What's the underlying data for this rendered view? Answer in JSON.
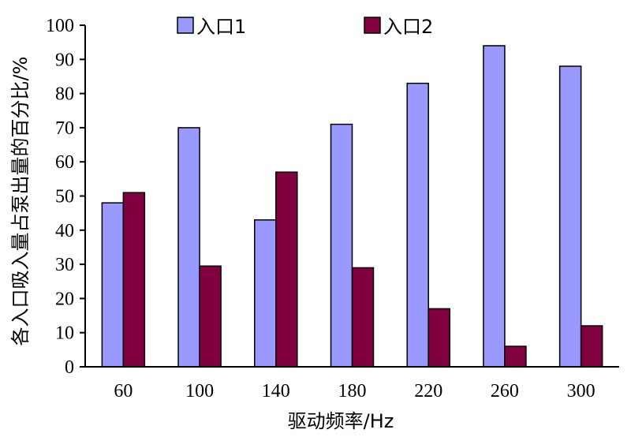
{
  "chart_data": {
    "type": "bar",
    "categories": [
      "60",
      "100",
      "140",
      "180",
      "220",
      "260",
      "300"
    ],
    "series": [
      {
        "name": "入口1",
        "color": "#9999ff",
        "values": [
          48,
          70,
          43,
          71,
          83,
          94,
          88
        ]
      },
      {
        "name": "入口2",
        "color": "#800040",
        "values": [
          51,
          29.5,
          57,
          29,
          17,
          6,
          12
        ]
      }
    ],
    "title": "",
    "xlabel": "驱动频率/Hz",
    "ylabel": "各入口吸入量占泵出量的百分比/%",
    "ylim": [
      0,
      100
    ],
    "yticks": [
      0,
      10,
      20,
      30,
      40,
      50,
      60,
      70,
      80,
      90,
      100
    ],
    "grid": false,
    "legend_position": "top"
  }
}
